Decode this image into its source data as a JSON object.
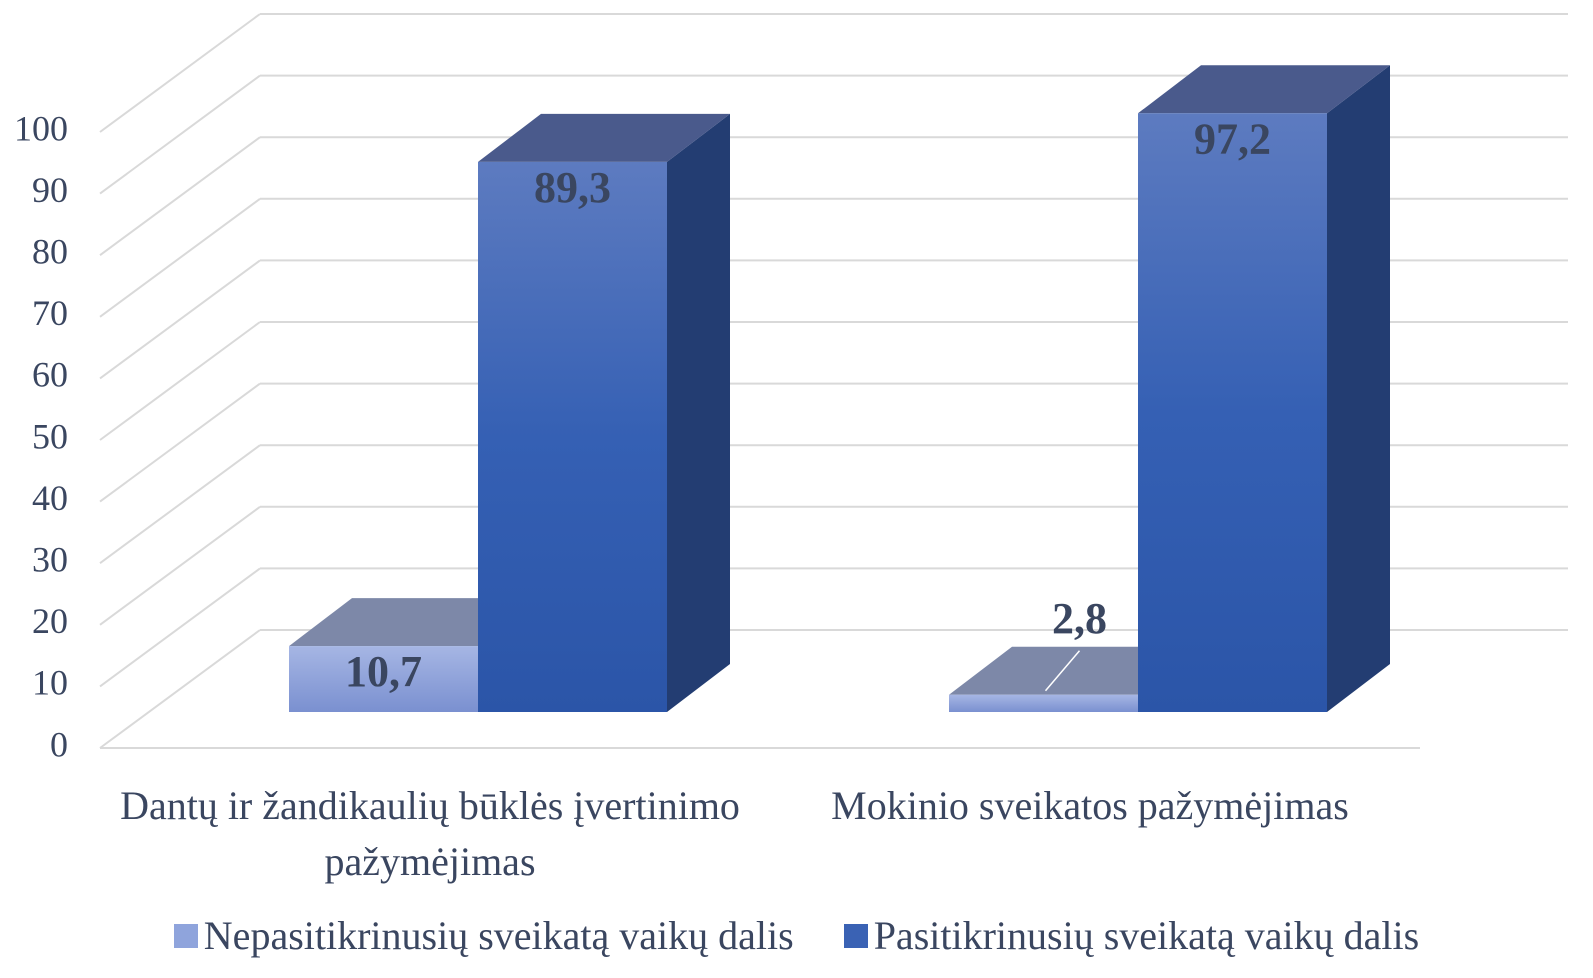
{
  "chart_data": {
    "type": "bar3d",
    "categories": [
      "Dantų ir žandikaulių būklės įvertinimo pažymėjimas",
      "Mokinio sveikatos pažymėjimas"
    ],
    "series": [
      {
        "name": "Nepasitikrinusių sveikatą vaikų dalis",
        "color": "#8fa4dc",
        "values": [
          10.7,
          2.8
        ],
        "value_labels": [
          "10,7",
          "2,8"
        ]
      },
      {
        "name": "Pasitikrinusių sveikatą vaikų dalis",
        "color": "#3a62b4",
        "values": [
          89.3,
          97.2
        ],
        "value_labels": [
          "89,3",
          "97,2"
        ]
      }
    ],
    "ylim": [
      0,
      100
    ],
    "yticks": [
      0,
      10,
      20,
      30,
      40,
      50,
      60,
      70,
      80,
      90,
      100
    ],
    "grid": true,
    "legend": "bottom"
  }
}
